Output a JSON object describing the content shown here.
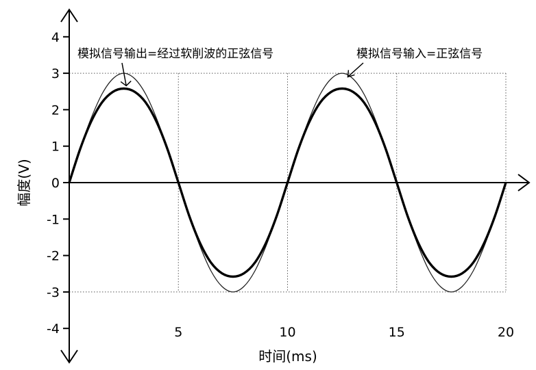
{
  "chart_data": {
    "type": "line",
    "title": "",
    "xlabel": "时间(ms)",
    "ylabel": "幅度(V)",
    "xlim": [
      0,
      20
    ],
    "ylim": [
      -4,
      4
    ],
    "x_ticks": [
      5,
      10,
      15,
      20
    ],
    "x_tick_labels": [
      "5",
      "10",
      "15",
      "20"
    ],
    "y_ticks": [
      4,
      3,
      2,
      1,
      0,
      -1,
      -2,
      -3,
      -4
    ],
    "y_tick_labels": [
      "4",
      "3",
      "2",
      "1",
      "0",
      "-1",
      "-2",
      "-3",
      "-4"
    ],
    "grid": true,
    "series": [
      {
        "name": "模拟信号输入=正弦信号",
        "style": "thin",
        "x": [
          0,
          0.5,
          1,
          1.5,
          2,
          2.5,
          3,
          3.5,
          4,
          4.5,
          5,
          5.5,
          6,
          6.5,
          7,
          7.5,
          8,
          8.5,
          9,
          9.5,
          10,
          10.5,
          11,
          11.5,
          12,
          12.5,
          13,
          13.5,
          14,
          14.5,
          15,
          15.5,
          16,
          16.5,
          17,
          17.5,
          18,
          18.5,
          19,
          19.5,
          20
        ],
        "values": [
          0,
          0.93,
          1.76,
          2.43,
          2.85,
          3.0,
          2.85,
          2.43,
          1.76,
          0.93,
          0,
          -0.93,
          -1.76,
          -2.43,
          -2.85,
          -3.0,
          -2.85,
          -2.43,
          -1.76,
          -0.93,
          0,
          0.93,
          1.76,
          2.43,
          2.85,
          3.0,
          2.85,
          2.43,
          1.76,
          0.93,
          0,
          -0.93,
          -1.76,
          -2.43,
          -2.85,
          -3.0,
          -2.85,
          -2.43,
          -1.76,
          -0.93,
          0
        ]
      },
      {
        "name": "模拟信号输出=经过软削波的正弦信号",
        "style": "thick",
        "x": [
          0,
          0.5,
          1,
          1.5,
          2,
          2.5,
          3,
          3.5,
          4,
          4.5,
          5,
          5.5,
          6,
          6.5,
          7,
          7.5,
          8,
          8.5,
          9,
          9.5,
          10,
          10.5,
          11,
          11.5,
          12,
          12.5,
          13,
          13.5,
          14,
          14.5,
          15,
          15.5,
          16,
          16.5,
          17,
          17.5,
          18,
          18.5,
          19,
          19.5,
          20
        ],
        "values": [
          0,
          0.92,
          1.67,
          2.2,
          2.49,
          2.58,
          2.49,
          2.2,
          1.67,
          0.92,
          0,
          -0.92,
          -1.67,
          -2.2,
          -2.49,
          -2.58,
          -2.49,
          -2.2,
          -1.67,
          -0.92,
          0,
          0.92,
          1.67,
          2.2,
          2.49,
          2.58,
          2.49,
          2.2,
          1.67,
          0.92,
          0,
          -0.92,
          -1.67,
          -2.2,
          -2.49,
          -2.58,
          -2.49,
          -2.2,
          -1.67,
          -0.92,
          0
        ]
      }
    ],
    "annotations": [
      {
        "text": "模拟信号输出=经过软削波的正弦信号",
        "points_to_x": 2.8,
        "points_to_y": 2.6
      },
      {
        "text": "模拟信号输入=正弦信号",
        "points_to_x": 13.2,
        "points_to_y": 2.9
      }
    ]
  }
}
